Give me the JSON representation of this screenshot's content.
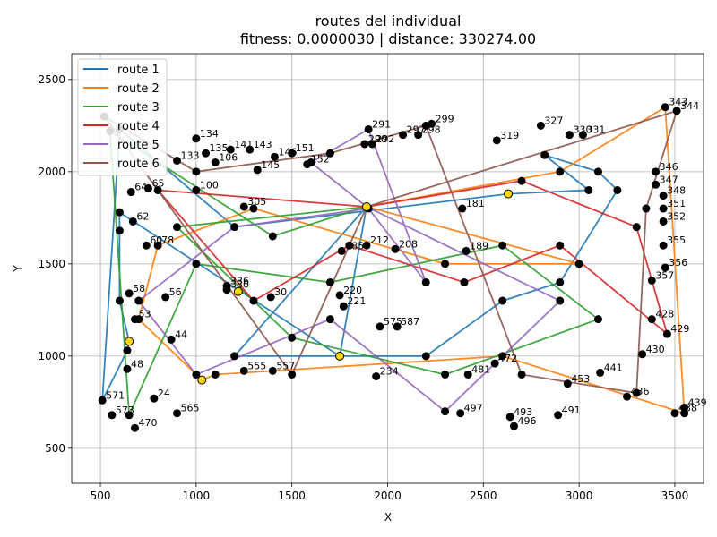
{
  "chart_data": {
    "type": "line",
    "title": "routes del individual",
    "subtitle": "fitness: 0.0000030 | distance: 330274.00",
    "xlabel": "X",
    "ylabel": "Y",
    "xlim": [
      350,
      3650
    ],
    "ylim": [
      310,
      2640
    ],
    "xticks": [
      500,
      1000,
      1500,
      2000,
      2500,
      3000,
      3500
    ],
    "yticks": [
      500,
      1000,
      1500,
      2000,
      2500
    ],
    "grid": true,
    "legend_position": "top-left",
    "series": [
      {
        "name": "route 1",
        "color": "#1f77b4",
        "points": [
          [
            1890,
            1810
          ],
          [
            1750,
            1000
          ],
          [
            600,
            1780
          ],
          [
            600,
            1680
          ],
          [
            600,
            1300
          ],
          [
            650,
            1080
          ],
          [
            640,
            1030
          ],
          [
            510,
            760
          ],
          [
            600,
            2230
          ],
          [
            1200,
            1700
          ],
          [
            2630,
            1880
          ],
          [
            3050,
            1900
          ],
          [
            2820,
            2090
          ],
          [
            3100,
            2000
          ],
          [
            3200,
            1900
          ],
          [
            2900,
            1400
          ],
          [
            2600,
            1300
          ],
          [
            2200,
            1000
          ],
          [
            1200,
            1000
          ],
          [
            1890,
            1810
          ]
        ]
      },
      {
        "name": "route 2",
        "color": "#ff7f0e",
        "points": [
          [
            1890,
            1810
          ],
          [
            2900,
            2000
          ],
          [
            3450,
            2350
          ],
          [
            3550,
            690
          ],
          [
            2600,
            1000
          ],
          [
            1100,
            900
          ],
          [
            1030,
            870
          ],
          [
            700,
            1200
          ],
          [
            800,
            1600
          ],
          [
            1300,
            1800
          ],
          [
            2300,
            1500
          ],
          [
            3000,
            1500
          ],
          [
            1890,
            1810
          ]
        ]
      },
      {
        "name": "route 3",
        "color": "#2ca02c",
        "points": [
          [
            1890,
            1810
          ],
          [
            1400,
            1650
          ],
          [
            550,
            2220
          ],
          [
            650,
            680
          ],
          [
            1000,
            1500
          ],
          [
            1700,
            1400
          ],
          [
            2600,
            1600
          ],
          [
            3100,
            1200
          ],
          [
            2300,
            900
          ],
          [
            1500,
            1100
          ],
          [
            900,
            1700
          ],
          [
            1890,
            1810
          ]
        ]
      },
      {
        "name": "route 4",
        "color": "#d62728",
        "points": [
          [
            1890,
            1810
          ],
          [
            2700,
            1950
          ],
          [
            3300,
            1700
          ],
          [
            3460,
            1120
          ],
          [
            2900,
            1600
          ],
          [
            2400,
            1400
          ],
          [
            1800,
            1600
          ],
          [
            1300,
            1300
          ],
          [
            800,
            1900
          ],
          [
            1890,
            1810
          ]
        ]
      },
      {
        "name": "route 5",
        "color": "#9467bd",
        "points": [
          [
            1890,
            1810
          ],
          [
            1600,
            2050
          ],
          [
            1900,
            2230
          ],
          [
            2200,
            1400
          ],
          [
            1900,
            1800
          ],
          [
            1200,
            1700
          ],
          [
            700,
            1300
          ],
          [
            1000,
            900
          ],
          [
            1700,
            1200
          ],
          [
            2300,
            700
          ],
          [
            2900,
            1300
          ],
          [
            1890,
            1810
          ]
        ]
      },
      {
        "name": "route 6",
        "color": "#8c564b",
        "points": [
          [
            1890,
            1810
          ],
          [
            3510,
            2330
          ],
          [
            3350,
            1800
          ],
          [
            3300,
            800
          ],
          [
            2700,
            900
          ],
          [
            2200,
            2250
          ],
          [
            1700,
            2100
          ],
          [
            1000,
            2000
          ],
          [
            520,
            2300
          ],
          [
            1500,
            900
          ],
          [
            1890,
            1810
          ]
        ]
      }
    ],
    "depots": [
      [
        1890,
        1810
      ],
      [
        2630,
        1880
      ],
      [
        1750,
        1000
      ],
      [
        1030,
        870
      ],
      [
        650,
        1080
      ],
      [
        1220,
        1350
      ]
    ],
    "labeled_nodes": [
      {
        "label": "343",
        "x": 3450,
        "y": 2350
      },
      {
        "label": "344",
        "x": 3510,
        "y": 2330
      },
      {
        "label": "327",
        "x": 2800,
        "y": 2250
      },
      {
        "label": "330",
        "x": 2950,
        "y": 2200
      },
      {
        "label": "331",
        "x": 3020,
        "y": 2200
      },
      {
        "label": "299",
        "x": 2230,
        "y": 2260
      },
      {
        "label": "291",
        "x": 1900,
        "y": 2230
      },
      {
        "label": "290",
        "x": 1880,
        "y": 2150
      },
      {
        "label": "292",
        "x": 1920,
        "y": 2150
      },
      {
        "label": "297",
        "x": 2080,
        "y": 2200
      },
      {
        "label": "298",
        "x": 2160,
        "y": 2200
      },
      {
        "label": "319",
        "x": 2570,
        "y": 2170
      },
      {
        "label": "134",
        "x": 1000,
        "y": 2180
      },
      {
        "label": "141",
        "x": 1180,
        "y": 2120
      },
      {
        "label": "143",
        "x": 1280,
        "y": 2120
      },
      {
        "label": "151",
        "x": 1500,
        "y": 2100
      },
      {
        "label": "135",
        "x": 1050,
        "y": 2100
      },
      {
        "label": "133",
        "x": 900,
        "y": 2060
      },
      {
        "label": "145",
        "x": 1320,
        "y": 2010
      },
      {
        "label": "146",
        "x": 1410,
        "y": 2080
      },
      {
        "label": "152",
        "x": 1580,
        "y": 2040
      },
      {
        "label": "106",
        "x": 1100,
        "y": 2050
      },
      {
        "label": "100",
        "x": 1000,
        "y": 1900
      },
      {
        "label": "346",
        "x": 3400,
        "y": 2000
      },
      {
        "label": "347",
        "x": 3400,
        "y": 1930
      },
      {
        "label": "348",
        "x": 3440,
        "y": 1870
      },
      {
        "label": "351",
        "x": 3440,
        "y": 1800
      },
      {
        "label": "352",
        "x": 3440,
        "y": 1730
      },
      {
        "label": "355",
        "x": 3440,
        "y": 1600
      },
      {
        "label": "356",
        "x": 3450,
        "y": 1480
      },
      {
        "label": "357",
        "x": 3380,
        "y": 1410
      },
      {
        "label": "428",
        "x": 3380,
        "y": 1200
      },
      {
        "label": "429",
        "x": 3460,
        "y": 1120
      },
      {
        "label": "430",
        "x": 3330,
        "y": 1010
      },
      {
        "label": "436",
        "x": 3250,
        "y": 780
      },
      {
        "label": "439",
        "x": 3550,
        "y": 720
      },
      {
        "label": "438",
        "x": 3500,
        "y": 690
      },
      {
        "label": "441",
        "x": 3110,
        "y": 910
      },
      {
        "label": "453",
        "x": 2940,
        "y": 850
      },
      {
        "label": "491",
        "x": 2890,
        "y": 680
      },
      {
        "label": "493",
        "x": 2640,
        "y": 670
      },
      {
        "label": "496",
        "x": 2660,
        "y": 620
      },
      {
        "label": "497",
        "x": 2380,
        "y": 690
      },
      {
        "label": "472",
        "x": 2560,
        "y": 960
      },
      {
        "label": "481",
        "x": 2420,
        "y": 900
      },
      {
        "label": "189",
        "x": 2410,
        "y": 1570
      },
      {
        "label": "181",
        "x": 2390,
        "y": 1800
      },
      {
        "label": "234",
        "x": 1940,
        "y": 890
      },
      {
        "label": "220",
        "x": 1750,
        "y": 1330
      },
      {
        "label": "24",
        "x": 780,
        "y": 770
      },
      {
        "label": "470",
        "x": 680,
        "y": 610
      },
      {
        "label": "571",
        "x": 510,
        "y": 760
      },
      {
        "label": "573",
        "x": 560,
        "y": 680
      },
      {
        "label": "48",
        "x": 640,
        "y": 930
      },
      {
        "label": "58",
        "x": 650,
        "y": 1340
      },
      {
        "label": "53",
        "x": 680,
        "y": 1200
      },
      {
        "label": "44",
        "x": 870,
        "y": 1090
      },
      {
        "label": "56",
        "x": 840,
        "y": 1320
      },
      {
        "label": "60",
        "x": 740,
        "y": 1600
      },
      {
        "label": "78",
        "x": 800,
        "y": 1600
      },
      {
        "label": "64",
        "x": 660,
        "y": 1890
      },
      {
        "label": "65",
        "x": 750,
        "y": 1910
      },
      {
        "label": "62",
        "x": 670,
        "y": 1730
      },
      {
        "label": "305",
        "x": 1250,
        "y": 1810
      },
      {
        "label": "336",
        "x": 1160,
        "y": 1380
      },
      {
        "label": "330",
        "x": 1160,
        "y": 1360
      },
      {
        "label": "30",
        "x": 1390,
        "y": 1320
      },
      {
        "label": "185",
        "x": 1760,
        "y": 1570
      },
      {
        "label": "208",
        "x": 2040,
        "y": 1580
      },
      {
        "label": "212",
        "x": 1890,
        "y": 1600
      },
      {
        "label": "221",
        "x": 1770,
        "y": 1270
      },
      {
        "label": "565",
        "x": 900,
        "y": 690
      },
      {
        "label": "555",
        "x": 1250,
        "y": 920
      },
      {
        "label": "557",
        "x": 1400,
        "y": 920
      },
      {
        "label": "575",
        "x": 1960,
        "y": 1160
      },
      {
        "label": "587",
        "x": 2050,
        "y": 1160
      }
    ]
  }
}
